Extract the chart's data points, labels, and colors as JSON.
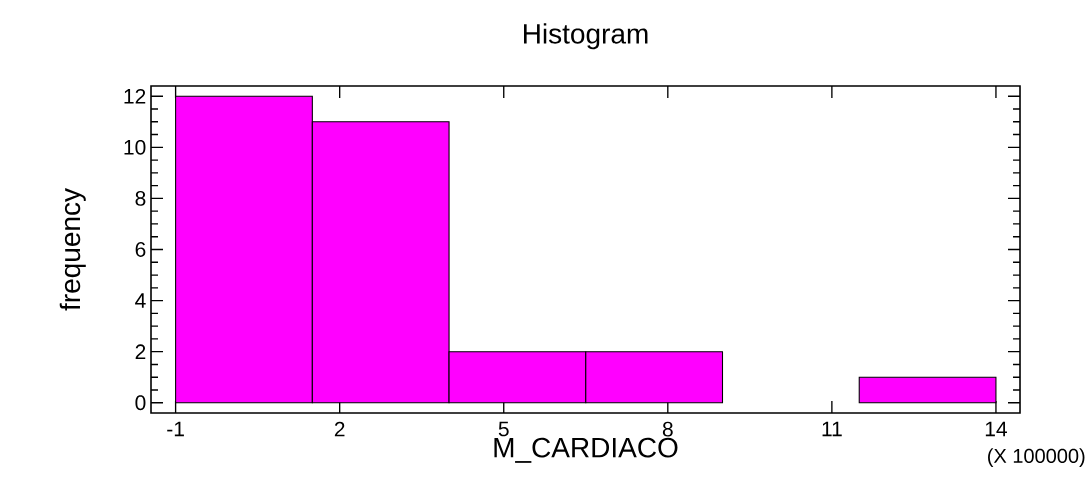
{
  "chart_data": {
    "type": "histogram",
    "title": "Histogram",
    "xlabel": "M_CARDIACO",
    "ylabel": "frequency",
    "bins": [
      -1,
      1.5,
      4,
      6.5,
      9,
      11.5,
      14
    ],
    "values": [
      12,
      11,
      2,
      2,
      0,
      1
    ],
    "color": "#ff00ff",
    "xlim": [
      -1.45,
      14.44
    ],
    "ylim": [
      -0.4,
      12.4
    ],
    "xticks": [
      -1,
      2,
      5,
      8,
      11,
      14
    ],
    "yticks": [
      0,
      2,
      4,
      6,
      8,
      10,
      12
    ],
    "annotations": [
      "(X 100000)"
    ]
  }
}
